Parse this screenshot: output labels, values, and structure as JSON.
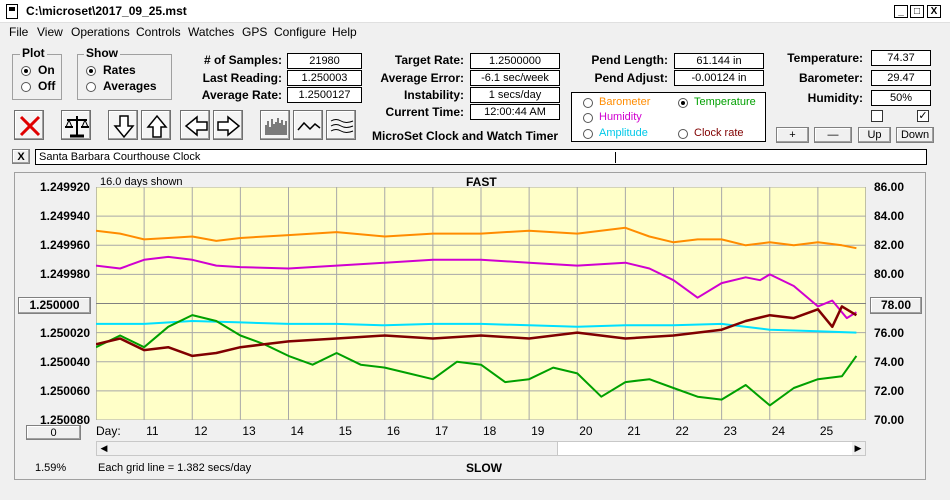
{
  "window": {
    "title": "C:\\microset\\2017_09_25.mst",
    "minimize": "_",
    "maximize": "□",
    "close": "X"
  },
  "menu": [
    "File",
    "View",
    "Operations",
    "Controls",
    "Watches",
    "GPS",
    "Configure",
    "Help"
  ],
  "plot_group": {
    "title": "Plot",
    "on": "On",
    "off": "Off",
    "selected": "On"
  },
  "show_group": {
    "title": "Show",
    "rates": "Rates",
    "averages": "Averages",
    "selected": "Rates"
  },
  "stats": {
    "samples_label": "# of Samples:",
    "samples": "21980",
    "last_reading_label": "Last Reading:",
    "last_reading": "1.250003",
    "average_rate_label": "Average Rate:",
    "average_rate": "1.2500127",
    "target_rate_label": "Target Rate:",
    "target_rate": "1.2500000",
    "average_error_label": "Average Error:",
    "average_error": "-6.1 sec/week",
    "instability_label": "Instability:",
    "instability": "1 secs/day",
    "current_time_label": "Current Time:",
    "current_time": "12:00:44 AM",
    "pend_length_label": "Pend Length:",
    "pend_length": "61.144 in",
    "pend_adjust_label": "Pend Adjust:",
    "pend_adjust": "-0.00124 in",
    "temperature_label": "Temperature:",
    "temperature": "74.37",
    "barometer_label": "Barometer:",
    "barometer": "29.47",
    "humidity_label": "Humidity:",
    "humidity": "50%"
  },
  "app_name": "MicroSet Clock and Watch Timer",
  "legend": {
    "barometer": "Barometer",
    "temperature": "Temperature",
    "humidity": "Humidity",
    "amplitude": "Amplitude",
    "clock_rate": "Clock rate",
    "selected": "Temperature"
  },
  "colors": {
    "barometer": "#ff8c00",
    "temperature": "#00a000",
    "humidity": "#d000d0",
    "amplitude": "#00e0ff",
    "clock_rate": "#800000",
    "plot_bg": "#ffffc8"
  },
  "buttons": {
    "plus": "+",
    "minus": "—",
    "up": "Up",
    "down": "Down",
    "clear": "X",
    "center_left": "1.250000",
    "center_right": "78.00",
    "bottom_left": "0"
  },
  "checkboxes": {
    "left": false,
    "right": true
  },
  "clock_name": "Santa Barbara Courthouse Clock",
  "plot": {
    "days_shown": "16.0 days shown",
    "top_label": "FAST",
    "bottom_label": "SLOW",
    "day_label": "Day:",
    "percent": "1.59%",
    "grid_note": "Each grid line = 1.382 secs/day"
  },
  "chart_data": {
    "type": "line",
    "x_ticks": [
      "11",
      "12",
      "13",
      "14",
      "15",
      "16",
      "17",
      "18",
      "19",
      "20",
      "21",
      "22",
      "23",
      "24",
      "25"
    ],
    "y_left_ticks": [
      "1.249920",
      "1.249940",
      "1.249960",
      "1.249980",
      "1.250000",
      "1.250020",
      "1.250040",
      "1.250060",
      "1.250080"
    ],
    "y_right_ticks": [
      "86.00",
      "84.00",
      "82.00",
      "80.00",
      "78.00",
      "76.00",
      "74.00",
      "72.00",
      "70.00"
    ],
    "xlim": [
      10,
      26
    ],
    "y_left_range": [
      1.24992,
      1.25008
    ],
    "y_right_range": [
      70,
      86
    ],
    "series": [
      {
        "name": "Barometer",
        "axis": "right",
        "color": "#ff8c00",
        "x": [
          10.0,
          10.5,
          11.0,
          11.5,
          12.0,
          12.5,
          13.0,
          14.0,
          15.0,
          16.0,
          17.0,
          18.0,
          19.0,
          20.0,
          21.0,
          21.5,
          22.0,
          22.5,
          23.0,
          23.5,
          24.0,
          24.5,
          25.0,
          25.5,
          25.8
        ],
        "y": [
          83.0,
          82.8,
          82.4,
          82.5,
          82.6,
          82.3,
          82.5,
          82.7,
          82.9,
          82.6,
          82.8,
          82.8,
          83.0,
          82.8,
          83.2,
          82.6,
          82.2,
          82.4,
          82.4,
          82.0,
          82.2,
          82.0,
          82.2,
          82.0,
          81.8
        ]
      },
      {
        "name": "Humidity",
        "axis": "right",
        "color": "#d000d0",
        "x": [
          10.0,
          10.5,
          11.0,
          11.5,
          12.0,
          12.5,
          13.0,
          14.0,
          15.0,
          16.0,
          17.0,
          18.0,
          19.0,
          20.0,
          21.0,
          21.5,
          22.0,
          22.5,
          23.0,
          23.5,
          23.8,
          24.0,
          24.5,
          25.0,
          25.3,
          25.6,
          25.8
        ],
        "y": [
          80.6,
          80.4,
          81.0,
          81.2,
          81.0,
          80.6,
          80.5,
          80.4,
          80.6,
          80.8,
          81.0,
          81.0,
          80.8,
          80.6,
          80.8,
          80.4,
          79.6,
          78.4,
          79.4,
          79.8,
          79.6,
          80.0,
          79.2,
          77.8,
          78.2,
          77.0,
          77.4
        ]
      },
      {
        "name": "Amplitude",
        "axis": "right",
        "color": "#00e0ff",
        "x": [
          10.0,
          11.0,
          12.0,
          13.0,
          14.0,
          15.0,
          16.0,
          17.0,
          18.0,
          19.0,
          20.0,
          21.0,
          22.0,
          23.0,
          24.0,
          25.0,
          25.8
        ],
        "y": [
          76.6,
          76.6,
          76.8,
          76.7,
          76.6,
          76.6,
          76.5,
          76.6,
          76.6,
          76.5,
          76.4,
          76.5,
          76.5,
          76.6,
          76.2,
          76.1,
          76.0
        ]
      },
      {
        "name": "Temperature",
        "axis": "right",
        "color": "#00a000",
        "x": [
          10.0,
          10.5,
          11.0,
          11.5,
          12.0,
          12.5,
          13.0,
          13.5,
          14.0,
          14.5,
          15.0,
          15.5,
          16.0,
          16.5,
          17.0,
          17.5,
          18.0,
          18.5,
          19.0,
          19.5,
          20.0,
          20.5,
          21.0,
          21.5,
          22.0,
          22.5,
          23.0,
          23.5,
          24.0,
          24.5,
          25.0,
          25.5,
          25.8
        ],
        "y": [
          75.0,
          75.8,
          75.0,
          76.4,
          77.2,
          76.8,
          75.8,
          75.2,
          74.4,
          73.8,
          74.6,
          73.8,
          73.6,
          73.2,
          72.8,
          74.0,
          73.8,
          72.6,
          72.8,
          73.6,
          73.2,
          71.6,
          72.6,
          72.8,
          72.2,
          71.6,
          71.4,
          72.4,
          71.0,
          72.2,
          72.8,
          73.0,
          74.4
        ]
      },
      {
        "name": "Clock rate",
        "axis": "left",
        "color": "#800000",
        "x": [
          10.0,
          10.5,
          11.0,
          11.5,
          12.0,
          12.5,
          13.0,
          13.5,
          14.0,
          15.0,
          16.0,
          17.0,
          18.0,
          19.0,
          20.0,
          21.0,
          22.0,
          23.0,
          23.5,
          24.0,
          24.5,
          25.0,
          25.3,
          25.5,
          25.8
        ],
        "y": [
          1.250028,
          1.250024,
          1.250032,
          1.25003,
          1.250036,
          1.250034,
          1.25003,
          1.250028,
          1.250026,
          1.250024,
          1.250022,
          1.250024,
          1.250022,
          1.250024,
          1.25002,
          1.250024,
          1.250022,
          1.250018,
          1.250012,
          1.250008,
          1.25001,
          1.250004,
          1.250016,
          1.250002,
          1.250008
        ]
      }
    ]
  }
}
